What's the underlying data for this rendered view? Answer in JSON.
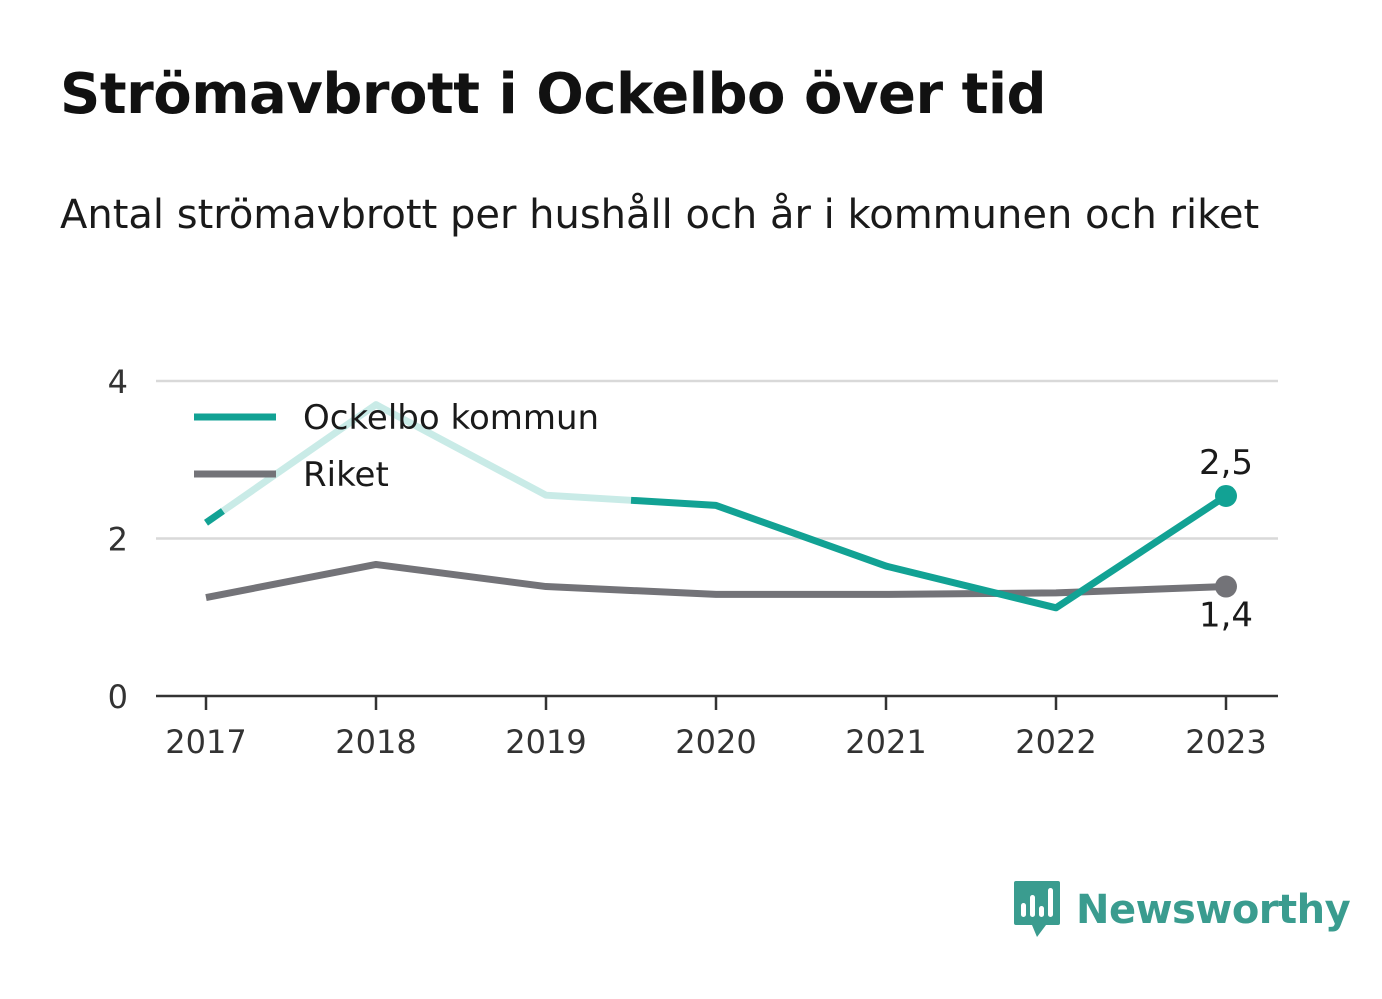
{
  "title": "Strömavbrott i Ockelbo över tid",
  "subtitle": "Antal strömavbrott per hushåll och år i kommunen och riket",
  "brand": {
    "name": "Newsworthy",
    "icon": "newsworthy-logo-icon",
    "color": "#3a9c8f"
  },
  "chart_data": {
    "type": "line",
    "x": [
      "2017",
      "2018",
      "2019",
      "2020",
      "2021",
      "2022",
      "2023"
    ],
    "ylim": [
      0,
      4
    ],
    "yticks": [
      "0",
      "2",
      "4"
    ],
    "grid": true,
    "legend_position": "top-left",
    "series": [
      {
        "name": "Ockelbo kommun",
        "color": "#12a294",
        "faded_color": "#c9ebe7",
        "values": [
          2.2,
          3.7,
          2.55,
          2.42,
          1.65,
          1.12,
          2.54
        ],
        "faded_range": [
          2017.1,
          2019.5
        ],
        "end_label": "2,5"
      },
      {
        "name": "Riket",
        "color": "#737378",
        "values": [
          1.25,
          1.67,
          1.39,
          1.29,
          1.29,
          1.31,
          1.39
        ],
        "end_label": "1,4"
      }
    ]
  }
}
